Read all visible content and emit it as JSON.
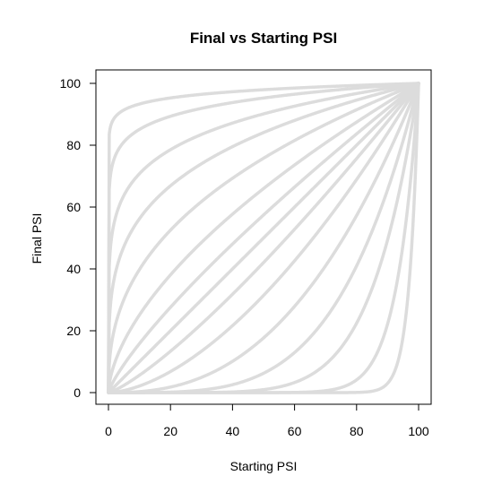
{
  "chart_data": {
    "type": "line",
    "title": "Final vs Starting PSI",
    "xlabel": "Starting PSI",
    "ylabel": "Final PSI",
    "xlim": [
      0,
      100
    ],
    "ylim": [
      0,
      100
    ],
    "xticks": [
      0,
      20,
      40,
      60,
      80,
      100
    ],
    "yticks": [
      0,
      20,
      40,
      60,
      80,
      100
    ],
    "grid": false,
    "legend": "none",
    "line_color": "#dcdcdc",
    "curve_family": "y = 100 * (x/100)^p",
    "exponents": [
      0.03,
      0.07,
      0.15,
      0.25,
      0.4,
      0.6,
      0.8,
      1.0,
      1.25,
      1.67,
      2.5,
      4.0,
      6.7,
      14.3,
      33.3
    ],
    "series": [
      {
        "x": [
          0,
          10,
          20,
          40,
          60,
          80,
          100
        ],
        "y": [
          0,
          93.3,
          95.3,
          97.3,
          98.5,
          99.3,
          100
        ]
      },
      {
        "x": [
          0,
          10,
          20,
          40,
          60,
          80,
          100
        ],
        "y": [
          0,
          85.1,
          89.3,
          93.8,
          96.5,
          98.4,
          100
        ]
      },
      {
        "x": [
          0,
          10,
          20,
          40,
          60,
          80,
          100
        ],
        "y": [
          0,
          70.8,
          78.5,
          87.2,
          92.6,
          96.7,
          100
        ]
      },
      {
        "x": [
          0,
          10,
          20,
          40,
          60,
          80,
          100
        ],
        "y": [
          0,
          56.2,
          66.9,
          79.5,
          88.0,
          94.6,
          100
        ]
      },
      {
        "x": [
          0,
          10,
          20,
          40,
          60,
          80,
          100
        ],
        "y": [
          0,
          39.8,
          52.5,
          69.3,
          81.5,
          91.5,
          100
        ]
      },
      {
        "x": [
          0,
          10,
          20,
          40,
          60,
          80,
          100
        ],
        "y": [
          0,
          25.1,
          38.1,
          57.7,
          73.6,
          87.5,
          100
        ]
      },
      {
        "x": [
          0,
          10,
          20,
          40,
          60,
          80,
          100
        ],
        "y": [
          0,
          15.8,
          27.6,
          48.0,
          66.4,
          83.7,
          100
        ]
      },
      {
        "x": [
          0,
          10,
          20,
          40,
          60,
          80,
          100
        ],
        "y": [
          0,
          10,
          20,
          40,
          60,
          80,
          100
        ]
      },
      {
        "x": [
          0,
          10,
          20,
          40,
          60,
          80,
          100
        ],
        "y": [
          0,
          5.6,
          13.4,
          31.8,
          52.8,
          75.7,
          100
        ]
      },
      {
        "x": [
          0,
          10,
          20,
          40,
          60,
          80,
          100
        ],
        "y": [
          0,
          2.1,
          6.8,
          21.7,
          42.6,
          68.9,
          100
        ]
      },
      {
        "x": [
          0,
          10,
          20,
          40,
          60,
          80,
          100
        ],
        "y": [
          0,
          0.3,
          1.8,
          10.1,
          27.9,
          57.2,
          100
        ]
      },
      {
        "x": [
          0,
          10,
          20,
          40,
          60,
          80,
          100
        ],
        "y": [
          0,
          0.0,
          0.2,
          2.6,
          13.0,
          41.0,
          100
        ]
      },
      {
        "x": [
          0,
          10,
          20,
          40,
          60,
          80,
          100
        ],
        "y": [
          0,
          0.0,
          0.0,
          0.2,
          3.3,
          22.5,
          100
        ]
      },
      {
        "x": [
          0,
          10,
          20,
          40,
          60,
          80,
          100
        ],
        "y": [
          0,
          0.0,
          0.0,
          0.0,
          0.1,
          4.1,
          100
        ]
      },
      {
        "x": [
          0,
          10,
          20,
          40,
          60,
          80,
          100
        ],
        "y": [
          0,
          0.0,
          0.0,
          0.0,
          0.0,
          0.1,
          100
        ]
      }
    ]
  }
}
